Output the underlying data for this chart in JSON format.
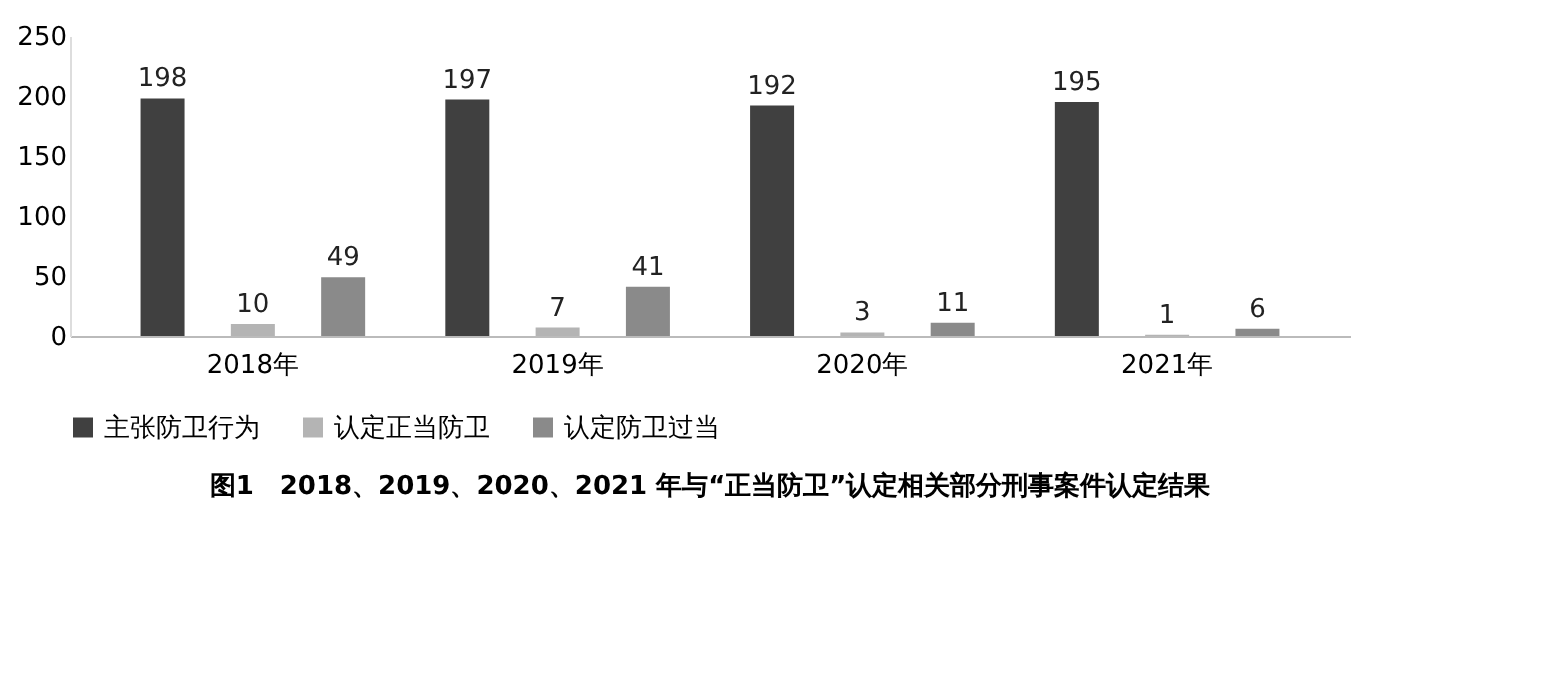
{
  "chart_data": {
    "type": "bar",
    "title": "图1　2018、2019、2020、2021 年与“正当防卫”认定相关部分刑事案件认定结果",
    "categories": [
      "2018年",
      "2019年",
      "2020年",
      "2021年"
    ],
    "series": [
      {
        "name": "主张防卫行为",
        "color": "#404040",
        "values": [
          198,
          197,
          192,
          195
        ]
      },
      {
        "name": "认定正当防卫",
        "color": "#b4b4b4",
        "values": [
          10,
          7,
          3,
          1
        ]
      },
      {
        "name": "认定防卫过当",
        "color": "#8a8a8a",
        "values": [
          49,
          41,
          11,
          6
        ]
      }
    ],
    "ylim": [
      0,
      250
    ],
    "yticks": [
      0,
      50,
      100,
      150,
      200,
      250
    ],
    "grid": false,
    "legend": "bottom",
    "data_labels": true
  }
}
